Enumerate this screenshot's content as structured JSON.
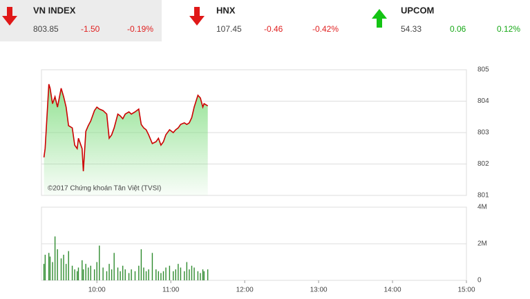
{
  "header": {
    "indices": [
      {
        "name": "VN INDEX",
        "value": "803.85",
        "change": "-1.50",
        "percent": "-0.19%"
      },
      {
        "name": "HNX",
        "value": "107.45",
        "change": "-0.46",
        "percent": "-0.42%"
      },
      {
        "name": "UPCOM",
        "value": "54.33",
        "change": "0.06",
        "percent": "0.12%"
      }
    ]
  },
  "chart_data": [
    {
      "type": "line",
      "annotation": "©2017 Chứng khoán Tân Việt (TVSI)",
      "color": "#cc0000",
      "area_color": "#7ddc7d",
      "x": [
        557,
        558,
        561,
        562,
        564,
        566,
        568,
        571,
        573,
        575,
        577,
        580,
        582,
        584,
        585,
        588,
        589,
        591,
        593,
        595,
        598,
        600,
        602,
        605,
        608,
        610,
        612,
        614,
        617,
        619,
        621,
        623,
        626,
        628,
        631,
        634,
        636,
        638,
        640,
        642,
        645,
        648,
        650,
        652,
        654,
        656,
        659,
        662,
        664,
        666,
        668,
        671,
        673,
        675,
        677,
        679,
        682,
        684,
        686,
        687,
        690
      ],
      "values": [
        802.21,
        802.49,
        804.54,
        804.41,
        803.92,
        804.14,
        803.81,
        804.41,
        804.14,
        803.81,
        803.22,
        803.15,
        802.6,
        802.49,
        802.82,
        802.49,
        801.77,
        803.04,
        803.22,
        803.37,
        803.7,
        803.81,
        803.75,
        803.7,
        803.59,
        802.82,
        802.93,
        803.15,
        803.59,
        803.53,
        803.44,
        803.59,
        803.66,
        803.59,
        803.66,
        803.75,
        803.26,
        803.15,
        803.09,
        802.93,
        802.65,
        802.71,
        802.82,
        802.6,
        802.71,
        802.93,
        803.09,
        803.0,
        803.09,
        803.15,
        803.26,
        803.31,
        803.26,
        803.31,
        803.48,
        803.81,
        804.19,
        804.1,
        803.81,
        803.92,
        803.85
      ],
      "xlim": [
        555,
        900
      ],
      "ylim": [
        801,
        805
      ],
      "yticks": [
        801,
        802,
        803,
        804,
        805
      ],
      "grid": true
    },
    {
      "type": "bar",
      "color": "#2e8b2e",
      "x": [
        557,
        558,
        561,
        562,
        564,
        566,
        568,
        571,
        573,
        575,
        577,
        580,
        582,
        584,
        585,
        588,
        589,
        591,
        593,
        595,
        598,
        600,
        602,
        605,
        608,
        610,
        612,
        614,
        617,
        619,
        621,
        623,
        626,
        628,
        631,
        634,
        636,
        638,
        640,
        642,
        645,
        648,
        650,
        652,
        654,
        656,
        659,
        662,
        664,
        666,
        668,
        671,
        673,
        675,
        677,
        679,
        682,
        684,
        686,
        687,
        690
      ],
      "values": [
        900000,
        1400000,
        1500000,
        1300000,
        1000000,
        2400000,
        1700000,
        1200000,
        1400000,
        900000,
        1600000,
        800000,
        600000,
        500000,
        700000,
        1100000,
        600000,
        900000,
        700000,
        800000,
        600000,
        1000000,
        1900000,
        700000,
        500000,
        900000,
        600000,
        1500000,
        700000,
        500000,
        800000,
        600000,
        400000,
        600000,
        500000,
        800000,
        1700000,
        700000,
        500000,
        600000,
        1500000,
        600000,
        500000,
        400000,
        500000,
        700000,
        800000,
        500000,
        600000,
        900000,
        700000,
        500000,
        1000000,
        600000,
        800000,
        700000,
        500000,
        400000,
        600000,
        500000,
        600000
      ],
      "xlim": [
        555,
        900
      ],
      "xticks": [
        {
          "value": 600,
          "label": "10:00"
        },
        {
          "value": 660,
          "label": "11:00"
        },
        {
          "value": 720,
          "label": "12:00"
        },
        {
          "value": 780,
          "label": "13:00"
        },
        {
          "value": 840,
          "label": "14:00"
        },
        {
          "value": 900,
          "label": "15:00"
        }
      ],
      "ylim": [
        0,
        4000000
      ],
      "yticks": [
        0,
        {
          "value": 2000000,
          "label": "2M"
        },
        {
          "value": 4000000,
          "label": "4M"
        }
      ],
      "grid": true
    }
  ]
}
